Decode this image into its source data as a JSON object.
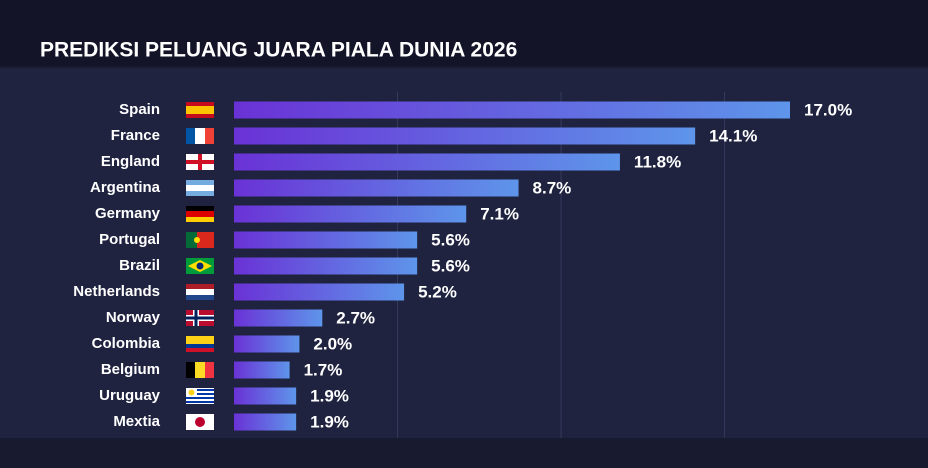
{
  "chart_data": {
    "type": "barh",
    "title": "PREDIKSI PELUANG JUARA PIALA DUNIA 2026",
    "categories": [
      "Spain",
      "France",
      "England",
      "Argentina",
      "Germany",
      "Portugal",
      "Brazil",
      "Netherlands",
      "Norway",
      "Colombia",
      "Belgium",
      "Uruguay",
      "Mextia"
    ],
    "values": [
      17.0,
      14.1,
      11.8,
      8.7,
      7.1,
      5.6,
      5.6,
      5.2,
      2.7,
      2.0,
      1.7,
      1.9,
      1.9
    ],
    "value_labels": [
      "17.0%",
      "14.1%",
      "11.8%",
      "8.7%",
      "7.1%",
      "5.6%",
      "5.6%",
      "5.2%",
      "2.7%",
      "2.0%",
      "1.7%",
      "1.9%",
      "1.9%"
    ],
    "color": [
      "#6a32d6",
      "#5e95ea"
    ],
    "xlim": [
      0,
      17
    ],
    "xticks": [
      5,
      10,
      15
    ],
    "grid": true
  }
}
